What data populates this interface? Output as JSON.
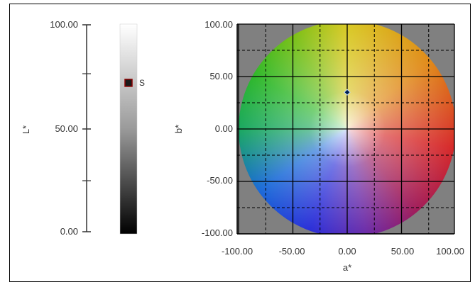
{
  "chart_data": [
    {
      "type": "scale",
      "ylabel": "L*",
      "ylim": [
        0,
        100
      ],
      "ticks": [
        "100.00",
        "50.00",
        "0.00"
      ],
      "marker": {
        "label": "S",
        "value": 72
      }
    },
    {
      "type": "scatter",
      "xlabel": "a*",
      "ylabel": "b*",
      "xlim": [
        -100,
        100
      ],
      "ylim": [
        -100,
        100
      ],
      "x_ticks": [
        "-100.00",
        "-50.00",
        "0.00",
        "50.00",
        "100.00"
      ],
      "y_ticks": [
        "100.00",
        "50.00",
        "0.00",
        "-50.00",
        "-100.00"
      ],
      "grid": true,
      "points": [
        {
          "x": 0,
          "y": 35
        }
      ]
    }
  ],
  "colors": {
    "plot_background": "#808080",
    "marker_fill": "#1a1a1a",
    "marker_border": "#8b0000",
    "point_fill": "#001f4d",
    "point_outline": "#bfd9ff"
  }
}
